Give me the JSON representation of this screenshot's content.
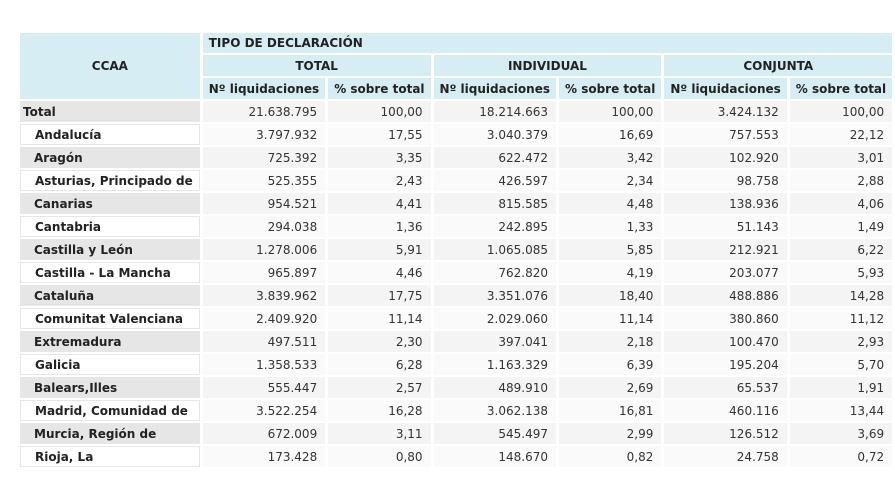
{
  "header": {
    "ccaa": "CCAA",
    "tipo": "TIPO DE DECLARACIÓN",
    "groups": [
      "TOTAL",
      "INDIVIDUAL",
      "CONJUNTA"
    ],
    "sub": [
      "Nº liquidaciones",
      "% sobre total",
      "Nº liquidaciones",
      "% sobre total",
      "Nº liquidaciones",
      "% sobre total"
    ]
  },
  "rows": [
    {
      "name": "Total",
      "values": [
        "21.638.795",
        "100,00",
        "18.214.663",
        "100,00",
        "3.424.132",
        "100,00"
      ]
    },
    {
      "name": "Andalucía",
      "values": [
        "3.797.932",
        "17,55",
        "3.040.379",
        "16,69",
        "757.553",
        "22,12"
      ]
    },
    {
      "name": "Aragón",
      "values": [
        "725.392",
        "3,35",
        "622.472",
        "3,42",
        "102.920",
        "3,01"
      ]
    },
    {
      "name": "Asturias, Principado de",
      "values": [
        "525.355",
        "2,43",
        "426.597",
        "2,34",
        "98.758",
        "2,88"
      ]
    },
    {
      "name": "Canarias",
      "values": [
        "954.521",
        "4,41",
        "815.585",
        "4,48",
        "138.936",
        "4,06"
      ]
    },
    {
      "name": "Cantabria",
      "values": [
        "294.038",
        "1,36",
        "242.895",
        "1,33",
        "51.143",
        "1,49"
      ]
    },
    {
      "name": "Castilla y León",
      "values": [
        "1.278.006",
        "5,91",
        "1.065.085",
        "5,85",
        "212.921",
        "6,22"
      ]
    },
    {
      "name": "Castilla - La Mancha",
      "values": [
        "965.897",
        "4,46",
        "762.820",
        "4,19",
        "203.077",
        "5,93"
      ]
    },
    {
      "name": "Cataluña",
      "values": [
        "3.839.962",
        "17,75",
        "3.351.076",
        "18,40",
        "488.886",
        "14,28"
      ]
    },
    {
      "name": "Comunitat Valenciana",
      "values": [
        "2.409.920",
        "11,14",
        "2.029.060",
        "11,14",
        "380.860",
        "11,12"
      ]
    },
    {
      "name": "Extremadura",
      "values": [
        "497.511",
        "2,30",
        "397.041",
        "2,18",
        "100.470",
        "2,93"
      ]
    },
    {
      "name": "Galicia",
      "values": [
        "1.358.533",
        "6,28",
        "1.163.329",
        "6,39",
        "195.204",
        "5,70"
      ]
    },
    {
      "name": "Balears,Illes",
      "values": [
        "555.447",
        "2,57",
        "489.910",
        "2,69",
        "65.537",
        "1,91"
      ]
    },
    {
      "name": "Madrid, Comunidad de",
      "values": [
        "3.522.254",
        "16,28",
        "3.062.138",
        "16,81",
        "460.116",
        "13,44"
      ]
    },
    {
      "name": "Murcia, Región de",
      "values": [
        "672.009",
        "3,11",
        "545.497",
        "2,99",
        "126.512",
        "3,69"
      ]
    },
    {
      "name": "Rioja, La",
      "values": [
        "173.428",
        "0,80",
        "148.670",
        "0,82",
        "24.758",
        "0,72"
      ]
    }
  ]
}
